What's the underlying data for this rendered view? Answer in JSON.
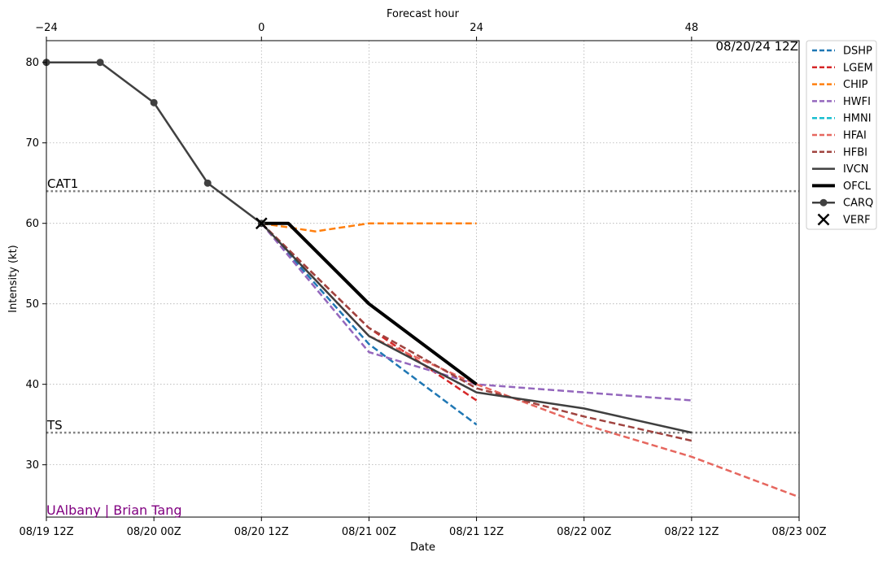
{
  "chart_data": {
    "type": "line",
    "title": "",
    "stamp": "08/20/24 12Z",
    "credit": "UAlbany | Brian Tang",
    "xlabel": "Date",
    "x2label": "Forecast hour",
    "ylabel": "Intensity (kt)",
    "xlim": [
      -24,
      60
    ],
    "ylim": [
      23.5,
      82.7
    ],
    "xticks": [
      {
        "hour": -24,
        "label": "08/19 12Z"
      },
      {
        "hour": -12,
        "label": "08/20 00Z"
      },
      {
        "hour": 0,
        "label": "08/20 12Z"
      },
      {
        "hour": 12,
        "label": "08/21 00Z"
      },
      {
        "hour": 24,
        "label": "08/21 12Z"
      },
      {
        "hour": 36,
        "label": "08/22 00Z"
      },
      {
        "hour": 48,
        "label": "08/22 12Z"
      },
      {
        "hour": 60,
        "label": "08/23 00Z"
      }
    ],
    "x2ticks": [
      {
        "hour": -24,
        "label": "−24"
      },
      {
        "hour": 0,
        "label": "0"
      },
      {
        "hour": 24,
        "label": "24"
      },
      {
        "hour": 48,
        "label": "48"
      }
    ],
    "yticks": [
      30,
      40,
      50,
      60,
      70,
      80
    ],
    "grid": true,
    "legend_position": "outside-right",
    "thresholds": [
      {
        "name": "CAT1",
        "value": 64,
        "color": "#808080"
      },
      {
        "name": "TS",
        "value": 34,
        "color": "#808080"
      }
    ],
    "series": [
      {
        "name": "DSHP",
        "color": "#1f77b4",
        "style": "dashed",
        "width": 2.5,
        "x": [
          0,
          12,
          24
        ],
        "y": [
          60,
          45,
          35
        ]
      },
      {
        "name": "LGEM",
        "color": "#d62728",
        "style": "dashed",
        "width": 2.5,
        "x": [
          0,
          12,
          24
        ],
        "y": [
          60,
          47,
          38
        ]
      },
      {
        "name": "CHIP",
        "color": "#ff7f0e",
        "style": "dashed",
        "width": 2.5,
        "x": [
          0,
          6,
          12,
          24
        ],
        "y": [
          60,
          59,
          60,
          60
        ]
      },
      {
        "name": "HWFI",
        "color": "#9467bd",
        "style": "dashed",
        "width": 2.5,
        "x": [
          0,
          12,
          24,
          36,
          48
        ],
        "y": [
          60,
          44,
          40,
          39,
          38
        ]
      },
      {
        "name": "HMNI",
        "color": "#17becf",
        "style": "dashed",
        "width": 2.5,
        "x": [],
        "y": []
      },
      {
        "name": "HFAI",
        "color": "#e6675f",
        "style": "dashed",
        "width": 2.5,
        "x": [
          0,
          12,
          24,
          36,
          48,
          60
        ],
        "y": [
          60,
          46,
          40,
          35,
          31,
          26
        ]
      },
      {
        "name": "HFBI",
        "color": "#a0433f",
        "style": "dashed",
        "width": 2.5,
        "x": [
          0,
          12,
          24,
          36,
          48
        ],
        "y": [
          60,
          47,
          39.5,
          36,
          33
        ]
      },
      {
        "name": "IVCN",
        "color": "#3f3f3f",
        "style": "solid",
        "width": 2.5,
        "x": [
          0,
          12,
          24,
          36,
          48
        ],
        "y": [
          60,
          46,
          39,
          37,
          34
        ]
      },
      {
        "name": "OFCL",
        "color": "#000000",
        "style": "solid",
        "width": 4,
        "x": [
          0,
          3,
          12,
          24
        ],
        "y": [
          60,
          60,
          50,
          40
        ]
      },
      {
        "name": "CARQ",
        "color": "#404040",
        "style": "solid-marker",
        "width": 2.5,
        "x": [
          -24,
          -18,
          -12,
          -6,
          0
        ],
        "y": [
          80,
          80,
          75,
          65,
          60
        ]
      },
      {
        "name": "VERF",
        "color": "#000000",
        "style": "x-marker",
        "width": 2.5,
        "x": [
          0
        ],
        "y": [
          60
        ]
      }
    ]
  }
}
